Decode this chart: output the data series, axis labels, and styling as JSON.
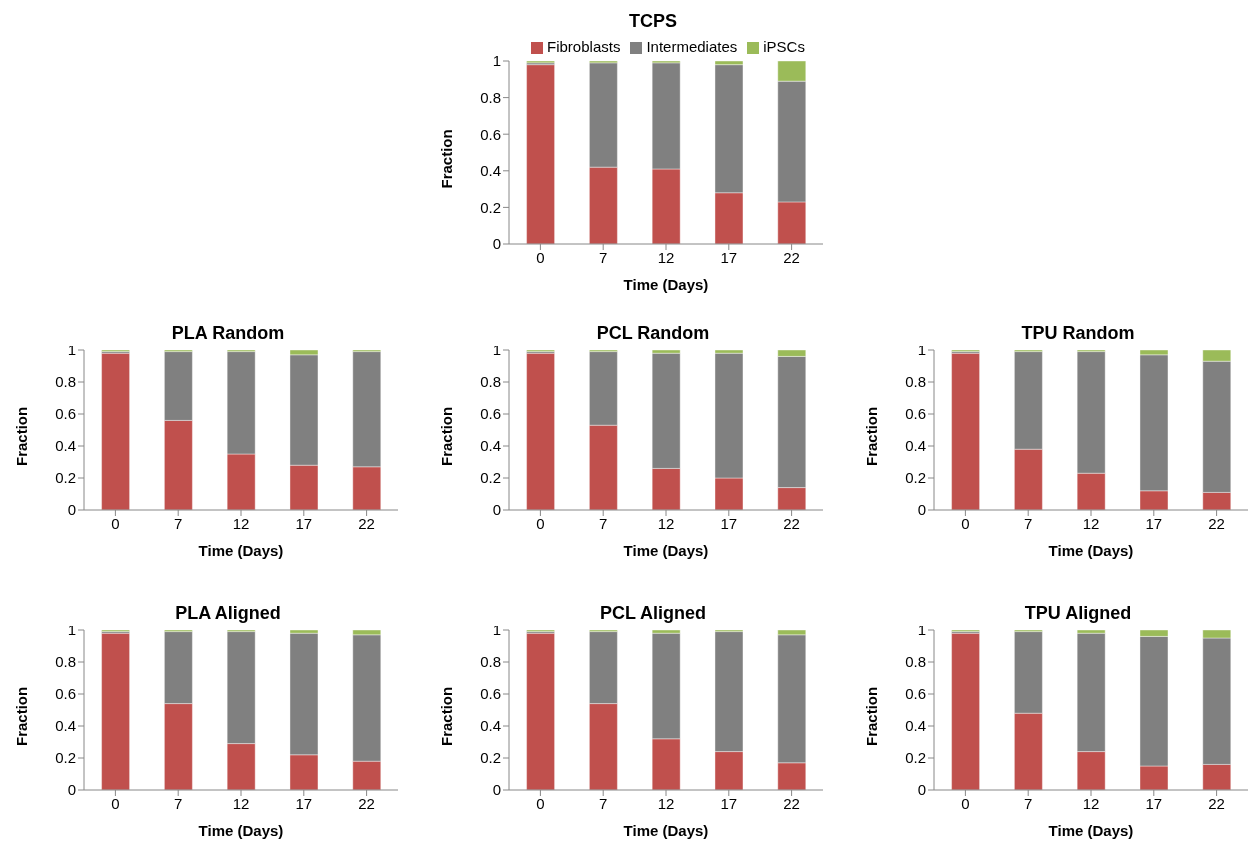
{
  "chart_data": [
    {
      "type": "bar",
      "title": "TCPS",
      "xlabel": "Time (Days)",
      "ylabel": "Fraction",
      "categories": [
        "0",
        "7",
        "12",
        "17",
        "22"
      ],
      "stacked": true,
      "legend": "top",
      "grid": false,
      "ylim": [
        0,
        1
      ],
      "yticks": [
        0,
        0.2,
        0.4,
        0.6,
        0.8,
        1
      ],
      "series": [
        {
          "name": "Fibroblasts",
          "color": "#c0504d",
          "values": [
            0.98,
            0.42,
            0.41,
            0.28,
            0.23
          ]
        },
        {
          "name": "Intermediates",
          "color": "#808080",
          "values": [
            0.01,
            0.57,
            0.58,
            0.7,
            0.66
          ]
        },
        {
          "name": "iPSCs",
          "color": "#9bbb59",
          "values": [
            0.01,
            0.01,
            0.01,
            0.02,
            0.11
          ]
        }
      ]
    },
    {
      "type": "bar",
      "title": "PLA Random",
      "xlabel": "Time (Days)",
      "ylabel": "Fraction",
      "categories": [
        "0",
        "7",
        "12",
        "17",
        "22"
      ],
      "stacked": true,
      "grid": false,
      "ylim": [
        0,
        1
      ],
      "yticks": [
        0,
        0.2,
        0.4,
        0.6,
        0.8,
        1
      ],
      "series": [
        {
          "color": "#c0504d",
          "values": [
            0.98,
            0.56,
            0.35,
            0.28,
            0.27
          ]
        },
        {
          "color": "#808080",
          "values": [
            0.01,
            0.43,
            0.64,
            0.69,
            0.72
          ]
        },
        {
          "color": "#9bbb59",
          "values": [
            0.01,
            0.01,
            0.01,
            0.03,
            0.01
          ]
        }
      ]
    },
    {
      "type": "bar",
      "title": "PCL Random",
      "xlabel": "Time (Days)",
      "ylabel": "Fraction",
      "categories": [
        "0",
        "7",
        "12",
        "17",
        "22"
      ],
      "stacked": true,
      "grid": false,
      "ylim": [
        0,
        1
      ],
      "yticks": [
        0,
        0.2,
        0.4,
        0.6,
        0.8,
        1
      ],
      "series": [
        {
          "color": "#c0504d",
          "values": [
            0.98,
            0.53,
            0.26,
            0.2,
            0.14
          ]
        },
        {
          "color": "#808080",
          "values": [
            0.01,
            0.46,
            0.72,
            0.78,
            0.82
          ]
        },
        {
          "color": "#9bbb59",
          "values": [
            0.01,
            0.01,
            0.02,
            0.02,
            0.04
          ]
        }
      ]
    },
    {
      "type": "bar",
      "title": "TPU Random",
      "xlabel": "Time (Days)",
      "ylabel": "Fraction",
      "categories": [
        "0",
        "7",
        "12",
        "17",
        "22"
      ],
      "stacked": true,
      "grid": false,
      "ylim": [
        0,
        1
      ],
      "yticks": [
        0,
        0.2,
        0.4,
        0.6,
        0.8,
        1
      ],
      "series": [
        {
          "color": "#c0504d",
          "values": [
            0.98,
            0.38,
            0.23,
            0.12,
            0.11
          ]
        },
        {
          "color": "#808080",
          "values": [
            0.01,
            0.61,
            0.76,
            0.85,
            0.82
          ]
        },
        {
          "color": "#9bbb59",
          "values": [
            0.01,
            0.01,
            0.01,
            0.03,
            0.07
          ]
        }
      ]
    },
    {
      "type": "bar",
      "title": "PLA Aligned",
      "xlabel": "Time (Days)",
      "ylabel": "Fraction",
      "categories": [
        "0",
        "7",
        "12",
        "17",
        "22"
      ],
      "stacked": true,
      "grid": false,
      "ylim": [
        0,
        1
      ],
      "yticks": [
        0,
        0.2,
        0.4,
        0.6,
        0.8,
        1
      ],
      "series": [
        {
          "color": "#c0504d",
          "values": [
            0.98,
            0.54,
            0.29,
            0.22,
            0.18
          ]
        },
        {
          "color": "#808080",
          "values": [
            0.01,
            0.45,
            0.7,
            0.76,
            0.79
          ]
        },
        {
          "color": "#9bbb59",
          "values": [
            0.01,
            0.01,
            0.01,
            0.02,
            0.03
          ]
        }
      ]
    },
    {
      "type": "bar",
      "title": "PCL Aligned",
      "xlabel": "Time (Days)",
      "ylabel": "Fraction",
      "categories": [
        "0",
        "7",
        "12",
        "17",
        "22"
      ],
      "stacked": true,
      "grid": false,
      "ylim": [
        0,
        1
      ],
      "yticks": [
        0,
        0.2,
        0.4,
        0.6,
        0.8,
        1
      ],
      "series": [
        {
          "color": "#c0504d",
          "values": [
            0.98,
            0.54,
            0.32,
            0.24,
            0.17
          ]
        },
        {
          "color": "#808080",
          "values": [
            0.01,
            0.45,
            0.66,
            0.75,
            0.8
          ]
        },
        {
          "color": "#9bbb59",
          "values": [
            0.01,
            0.01,
            0.02,
            0.01,
            0.03
          ]
        }
      ]
    },
    {
      "type": "bar",
      "title": "TPU Aligned",
      "xlabel": "Time (Days)",
      "ylabel": "Fraction",
      "categories": [
        "0",
        "7",
        "12",
        "17",
        "22"
      ],
      "stacked": true,
      "grid": false,
      "ylim": [
        0,
        1
      ],
      "yticks": [
        0,
        0.2,
        0.4,
        0.6,
        0.8,
        1
      ],
      "series": [
        {
          "color": "#c0504d",
          "values": [
            0.98,
            0.48,
            0.24,
            0.15,
            0.16
          ]
        },
        {
          "color": "#808080",
          "values": [
            0.01,
            0.51,
            0.74,
            0.81,
            0.79
          ]
        },
        {
          "color": "#9bbb59",
          "values": [
            0.01,
            0.01,
            0.02,
            0.04,
            0.05
          ]
        }
      ]
    }
  ]
}
